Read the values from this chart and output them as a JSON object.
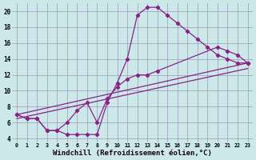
{
  "bg_color": "#cce8e8",
  "grid_color": "#9999bb",
  "line_color": "#882288",
  "xlabel": "Windchill (Refroidissement éolien,°C)",
  "xlabel_fontsize": 6.5,
  "ylabel_ticks": [
    4,
    6,
    8,
    10,
    12,
    14,
    16,
    18,
    20
  ],
  "xlabel_ticks": [
    0,
    1,
    2,
    3,
    4,
    5,
    6,
    7,
    8,
    9,
    10,
    11,
    12,
    13,
    14,
    15,
    16,
    17,
    18,
    19,
    20,
    21,
    22,
    23
  ],
  "xlim": [
    -0.5,
    23.5
  ],
  "ylim": [
    3.5,
    21.0
  ],
  "curve1_x": [
    0,
    1,
    2,
    3,
    4,
    5,
    6,
    7,
    8,
    9,
    10,
    11,
    12,
    13,
    14,
    15,
    16,
    17,
    18,
    19,
    20,
    21,
    22,
    23
  ],
  "curve1_y": [
    7.0,
    6.5,
    6.5,
    5.0,
    5.0,
    4.5,
    4.5,
    4.5,
    4.5,
    8.5,
    11.0,
    14.0,
    19.5,
    20.5,
    20.5,
    19.5,
    18.5,
    17.5,
    16.5,
    15.5,
    14.5,
    14.0,
    13.5,
    13.5
  ],
  "curve2_x": [
    0,
    1,
    2,
    3,
    4,
    5,
    6,
    7,
    8,
    9,
    10,
    11,
    12,
    13,
    14,
    20,
    21,
    22,
    23
  ],
  "curve2_y": [
    7.0,
    6.5,
    6.5,
    5.0,
    5.0,
    6.0,
    7.5,
    8.5,
    6.0,
    9.0,
    10.5,
    11.5,
    12.0,
    12.0,
    12.5,
    15.5,
    15.0,
    14.5,
    13.5
  ],
  "line3_x": [
    0,
    23
  ],
  "line3_y": [
    7.0,
    13.5
  ],
  "line4_x": [
    0,
    23
  ],
  "line4_y": [
    6.5,
    12.8
  ]
}
